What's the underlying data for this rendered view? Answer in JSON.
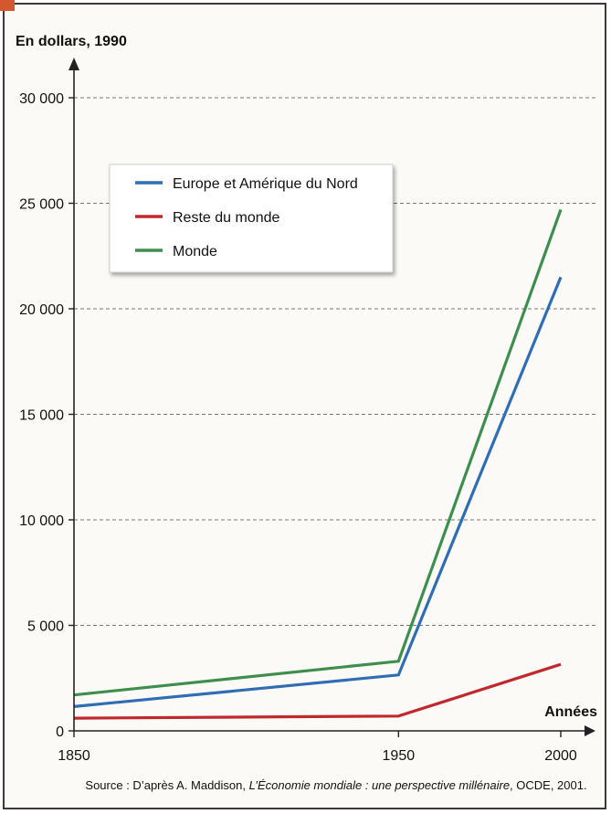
{
  "chart_data": {
    "type": "line",
    "ylabel": "En dollars, 1990",
    "xlabel": "Années",
    "x": [
      1850,
      1950,
      2000
    ],
    "xticks": [
      1850,
      1950,
      2000
    ],
    "xlim": [
      1850,
      2000
    ],
    "ylim": [
      0,
      30000
    ],
    "yticks": [
      0,
      5000,
      10000,
      15000,
      20000,
      25000,
      30000
    ],
    "ytick_labels": [
      "0",
      "5 000",
      "10 000",
      "15 000",
      "20 000",
      "25 000",
      "30 000"
    ],
    "grid": "horizontal dashed",
    "legend": "top-left",
    "series": [
      {
        "name": "Europe et Amérique du Nord",
        "color": "#2f6db5",
        "values": [
          1150,
          2650,
          21500
        ]
      },
      {
        "name": "Reste du monde",
        "color": "#c0282d",
        "values": [
          600,
          700,
          3150
        ]
      },
      {
        "name": "Monde",
        "color": "#3e8e4e",
        "values": [
          1700,
          3300,
          24700
        ]
      }
    ]
  },
  "source": {
    "prefix": "Source : D’après A. Maddison, ",
    "title": "L’Économie mondiale : une perspective millénaire",
    "suffix": ", OCDE, 2001."
  }
}
